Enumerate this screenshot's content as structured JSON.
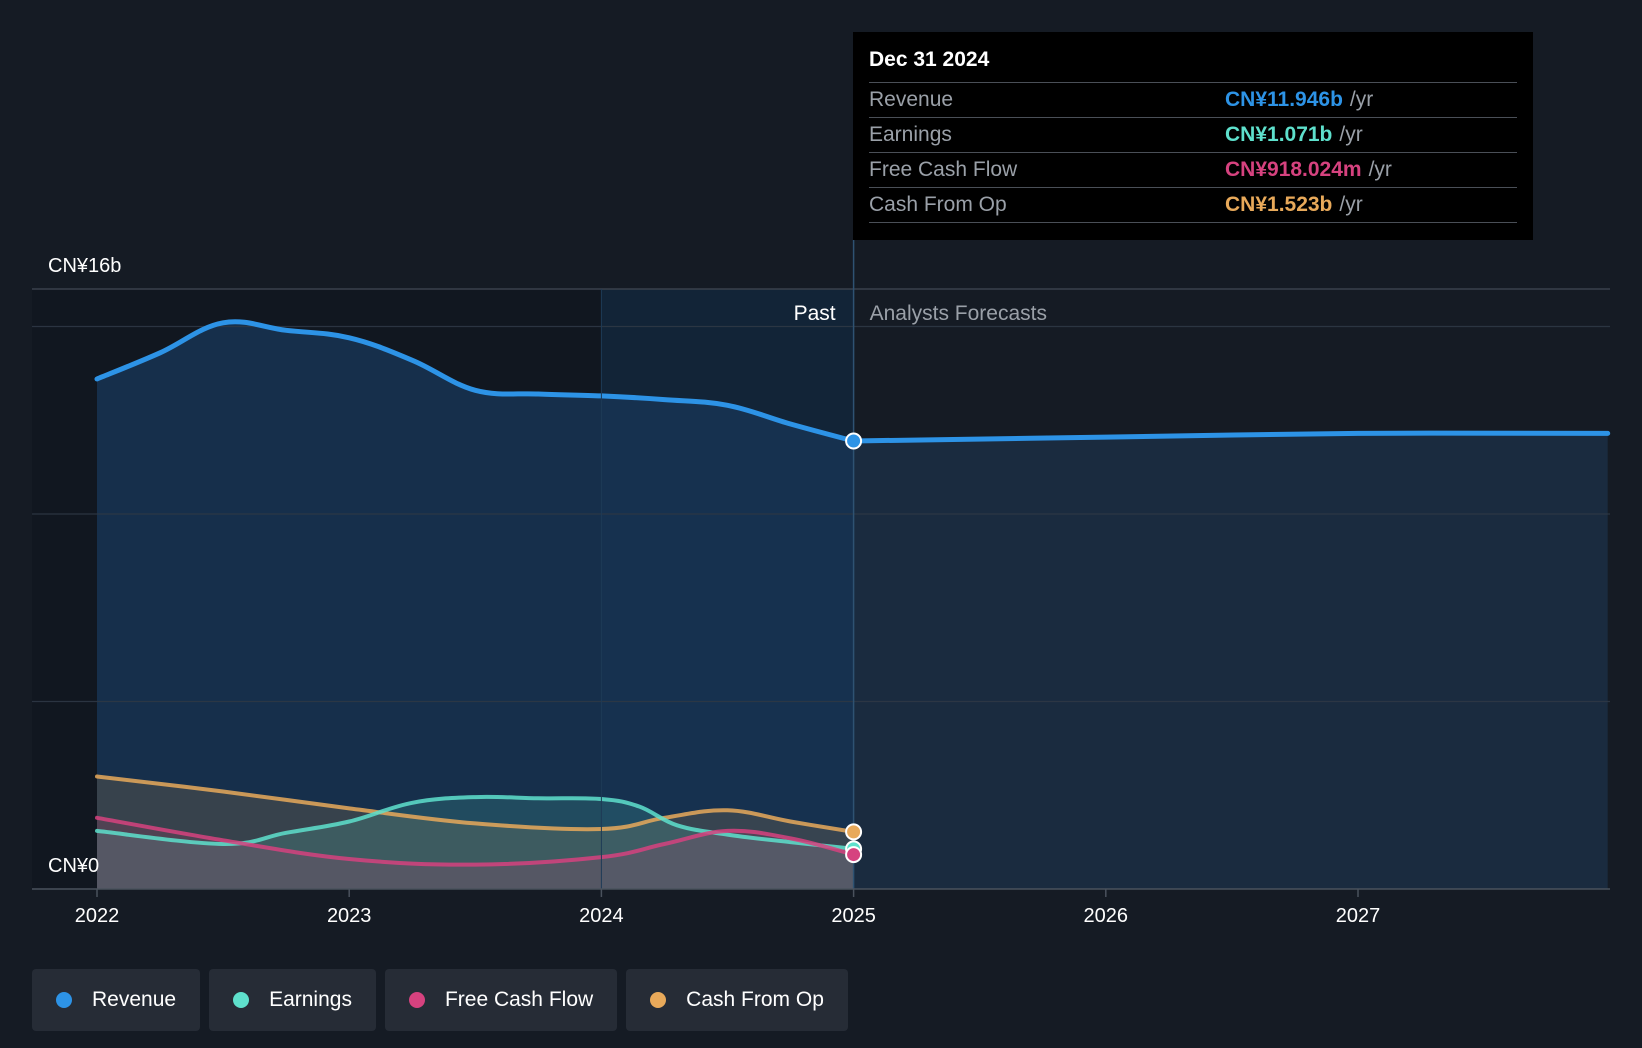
{
  "chart_data": {
    "type": "area",
    "currency_unit": "CN¥",
    "y_labels": {
      "top": "CN¥16b",
      "bottom": "CN¥0"
    },
    "ylim": [
      0,
      16
    ],
    "xlim": [
      2021.75,
      2027.99
    ],
    "x_ticks": [
      2022,
      2023,
      2024,
      2025,
      2026,
      2027
    ],
    "x_tick_labels": [
      "2022",
      "2023",
      "2024",
      "2025",
      "2026",
      "2027"
    ],
    "grid_values": [
      5,
      10,
      15
    ],
    "past_label": "Past",
    "forecast_label": "Analysts Forecasts",
    "divider_x": 2025,
    "highlight_start_x": 2024,
    "series": [
      {
        "name": "Revenue",
        "color": "#2d93e6",
        "x": [
          2022,
          2022.25,
          2022.5,
          2022.75,
          2023,
          2023.25,
          2023.5,
          2023.75,
          2024,
          2024.25,
          2024.5,
          2024.75,
          2025
        ],
        "y": [
          13.6,
          14.3,
          15.1,
          14.9,
          14.7,
          14.1,
          13.3,
          13.2,
          13.15,
          13.05,
          12.9,
          12.4,
          11.946
        ]
      },
      {
        "name": "Revenue forecast",
        "color": "#2d93e6",
        "x": [
          2025,
          2026,
          2027,
          2027.99
        ],
        "y": [
          11.946,
          12.05,
          12.15,
          12.15
        ]
      },
      {
        "name": "Earnings",
        "color": "#5ee0cc",
        "x": [
          2022,
          2022.5,
          2022.75,
          2023,
          2023.25,
          2023.5,
          2023.75,
          2024,
          2024.15,
          2024.3,
          2024.5,
          2024.75,
          2025
        ],
        "y": [
          1.55,
          1.2,
          1.5,
          1.8,
          2.3,
          2.45,
          2.42,
          2.4,
          2.2,
          1.7,
          1.45,
          1.25,
          1.071
        ]
      },
      {
        "name": "Free Cash Flow",
        "color": "#d6427f",
        "x": [
          2022,
          2022.5,
          2023,
          2023.5,
          2024,
          2024.25,
          2024.5,
          2024.75,
          2025
        ],
        "y": [
          1.9,
          1.3,
          0.8,
          0.65,
          0.85,
          1.2,
          1.55,
          1.35,
          0.918
        ]
      },
      {
        "name": "Cash From Op",
        "color": "#e8a95a",
        "x": [
          2022,
          2022.5,
          2023,
          2023.5,
          2024,
          2024.25,
          2024.5,
          2024.75,
          2025
        ],
        "y": [
          3.0,
          2.6,
          2.15,
          1.75,
          1.6,
          1.9,
          2.1,
          1.8,
          1.523
        ]
      }
    ]
  },
  "tooltip": {
    "date": "Dec 31 2024",
    "rows": [
      {
        "label": "Revenue",
        "value": "CN¥11.946b",
        "unit": "/yr",
        "color": "#2d93e6"
      },
      {
        "label": "Earnings",
        "value": "CN¥1.071b",
        "unit": "/yr",
        "color": "#5ee0cc"
      },
      {
        "label": "Free Cash Flow",
        "value": "CN¥918.024m",
        "unit": "/yr",
        "color": "#d6427f"
      },
      {
        "label": "Cash From Op",
        "value": "CN¥1.523b",
        "unit": "/yr",
        "color": "#e8a95a"
      }
    ]
  },
  "legend": [
    {
      "label": "Revenue",
      "color": "#2d93e6"
    },
    {
      "label": "Earnings",
      "color": "#5ee0cc"
    },
    {
      "label": "Free Cash Flow",
      "color": "#d6427f"
    },
    {
      "label": "Cash From Op",
      "color": "#e8a95a"
    }
  ]
}
